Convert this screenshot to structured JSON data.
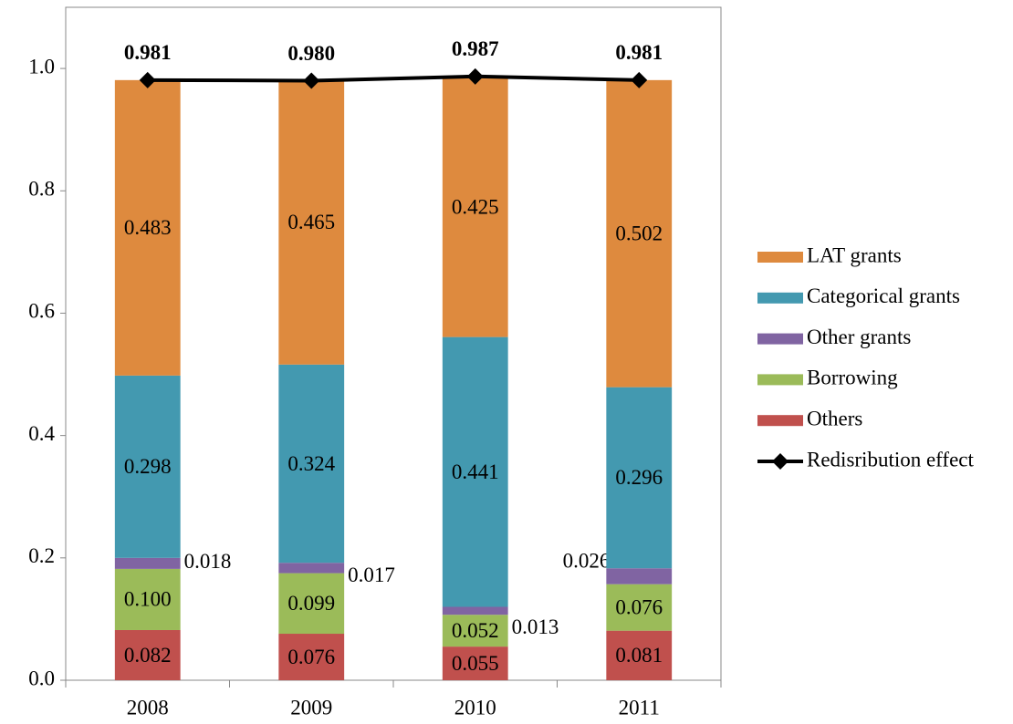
{
  "chart_data": {
    "type": "bar",
    "stacked": true,
    "categories": [
      "2008",
      "2009",
      "2010",
      "2011"
    ],
    "ylim": [
      0,
      1.1
    ],
    "yticks": [
      {
        "value": 0,
        "label": "0.0"
      },
      {
        "value": 0.2,
        "label": "0.2"
      },
      {
        "value": 0.4,
        "label": "0.4"
      },
      {
        "value": 0.6,
        "label": "0.6"
      },
      {
        "value": 0.8,
        "label": "0.8"
      },
      {
        "value": 1,
        "label": "1.0"
      }
    ],
    "series": [
      {
        "name": "Others",
        "color": "#c0504d",
        "values": [
          0.082,
          0.076,
          0.055,
          0.081
        ]
      },
      {
        "name": "Borrowing",
        "color": "#9bbb59",
        "values": [
          0.1,
          0.099,
          0.052,
          0.076
        ],
        "value_labels": [
          "0.100",
          "0.099",
          "0.052",
          "0.076"
        ]
      },
      {
        "name": "Other grants",
        "color": "#8064a2",
        "values": [
          0.018,
          0.017,
          0.013,
          0.026
        ]
      },
      {
        "name": "Categorical grants",
        "color": "#4399b0",
        "values": [
          0.298,
          0.324,
          0.441,
          0.296
        ]
      },
      {
        "name": "LAT grants",
        "color": "#de8a3e",
        "values": [
          0.483,
          0.465,
          0.425,
          0.502
        ]
      },
      {
        "name": "Redisribution effect",
        "color": "#000000",
        "type": "line",
        "values": [
          0.981,
          0.98,
          0.987,
          0.981
        ],
        "value_labels": [
          "0.981",
          "0.980",
          "0.987",
          "0.981"
        ]
      }
    ]
  }
}
